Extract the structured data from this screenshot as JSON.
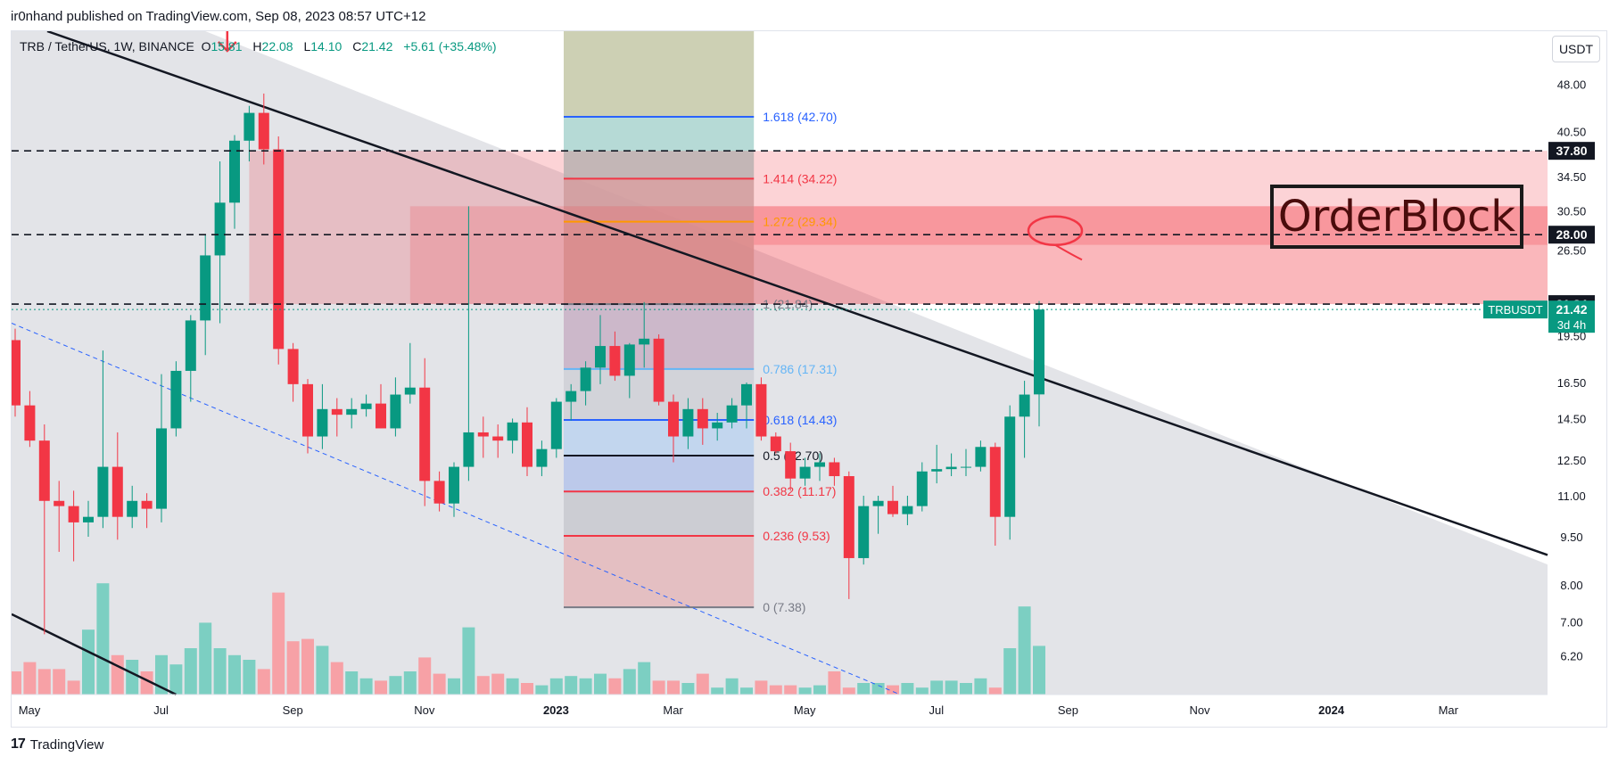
{
  "publisher_line": "ir0nhand published on TradingView.com, Sep 08, 2023 08:57 UTC+12",
  "footer_brand": "TradingView",
  "currency": "USDT",
  "legend": {
    "pair": "TRB / TetherUS, 1W, BINANCE",
    "o_label": "O",
    "o": "15.81",
    "h_label": "H",
    "h": "22.08",
    "l_label": "L",
    "l": "14.10",
    "c_label": "C",
    "c": "21.42",
    "change": "+5.61 (+35.48%)"
  },
  "annotation_text": "OrderBlock",
  "colors": {
    "up": "#089981",
    "down": "#f23645",
    "up_vol": "#7ccfc2",
    "down_vol": "#f7a1a6"
  },
  "chart_data": {
    "type": "candlestick",
    "symbol": "TRBUSDT",
    "last_price": "21.42",
    "countdown": "3d 4h",
    "y_scale": "log",
    "ylim": [
      5.4,
      58
    ],
    "price_ticks": [
      "48.00",
      "40.50",
      "34.50",
      "30.50",
      "26.50",
      "19.50",
      "16.50",
      "14.50",
      "12.50",
      "11.00",
      "9.50",
      "8.00",
      "7.00",
      "6.20"
    ],
    "time_ticks": [
      {
        "label": "May",
        "t": 0
      },
      {
        "label": "Jul",
        "t": 9
      },
      {
        "label": "Sep",
        "t": 18
      },
      {
        "label": "Nov",
        "t": 27
      },
      {
        "label": "2023",
        "t": 36,
        "bold": true
      },
      {
        "label": "Mar",
        "t": 44
      },
      {
        "label": "May",
        "t": 53
      },
      {
        "label": "Jul",
        "t": 62
      },
      {
        "label": "Sep",
        "t": 71
      },
      {
        "label": "Nov",
        "t": 80
      },
      {
        "label": "2024",
        "t": 89,
        "bold": true
      },
      {
        "label": "Mar",
        "t": 97
      }
    ],
    "horizontal_levels": [
      {
        "price": 37.8,
        "label": "37.80"
      },
      {
        "price": 28.0,
        "label": "28.00"
      },
      {
        "price": 21.84,
        "label": "21.84"
      }
    ],
    "fibonacci": [
      {
        "ratio": "1.618",
        "price": 42.7,
        "text": "1.618 (42.70)",
        "color": "#2962ff"
      },
      {
        "ratio": "1.414",
        "price": 34.22,
        "text": "1.414 (34.22)",
        "color": "#f23645"
      },
      {
        "ratio": "1.272",
        "price": 29.34,
        "text": "1.272 (29.34)",
        "color": "#ff9800"
      },
      {
        "ratio": "1",
        "price": 21.84,
        "text": "1 (21.84)",
        "color": "#787b86"
      },
      {
        "ratio": "0.786",
        "price": 17.31,
        "text": "0.786 (17.31)",
        "color": "#64b5f6"
      },
      {
        "ratio": "0.618",
        "price": 14.43,
        "text": "0.618 (14.43)",
        "color": "#2962ff"
      },
      {
        "ratio": "0.5",
        "price": 12.7,
        "text": "0.5 (12.70)",
        "color": "#131722"
      },
      {
        "ratio": "0.382",
        "price": 11.17,
        "text": "0.382 (11.17)",
        "color": "#f23645"
      },
      {
        "ratio": "0.236",
        "price": 9.53,
        "text": "0.236 (9.53)",
        "color": "#f23645"
      },
      {
        "ratio": "0",
        "price": 7.38,
        "text": "0 (7.38)",
        "color": "#787b86"
      }
    ],
    "candles": [
      {
        "o": 19.2,
        "h": 20.0,
        "l": 14.6,
        "c": 15.2
      },
      {
        "o": 15.2,
        "h": 16.0,
        "l": 13.1,
        "c": 13.4
      },
      {
        "o": 13.4,
        "h": 14.2,
        "l": 6.7,
        "c": 10.8
      },
      {
        "o": 10.8,
        "h": 11.6,
        "l": 9.0,
        "c": 10.6
      },
      {
        "o": 10.6,
        "h": 11.2,
        "l": 8.7,
        "c": 10.0
      },
      {
        "o": 10.0,
        "h": 10.8,
        "l": 9.5,
        "c": 10.2
      },
      {
        "o": 10.2,
        "h": 18.5,
        "l": 9.8,
        "c": 12.2
      },
      {
        "o": 12.2,
        "h": 13.8,
        "l": 9.4,
        "c": 10.2
      },
      {
        "o": 10.2,
        "h": 11.4,
        "l": 9.8,
        "c": 10.8
      },
      {
        "o": 10.8,
        "h": 11.1,
        "l": 9.8,
        "c": 10.5
      },
      {
        "o": 10.5,
        "h": 17.0,
        "l": 10.0,
        "c": 14.0
      },
      {
        "o": 14.0,
        "h": 17.8,
        "l": 13.6,
        "c": 17.2
      },
      {
        "o": 17.2,
        "h": 21.0,
        "l": 15.4,
        "c": 20.6
      },
      {
        "o": 20.6,
        "h": 28.0,
        "l": 18.2,
        "c": 26.0
      },
      {
        "o": 26.0,
        "h": 36.4,
        "l": 20.4,
        "c": 31.4
      },
      {
        "o": 31.4,
        "h": 40.0,
        "l": 28.6,
        "c": 39.2
      },
      {
        "o": 39.2,
        "h": 44.4,
        "l": 36.4,
        "c": 43.3
      },
      {
        "o": 43.3,
        "h": 46.4,
        "l": 36.0,
        "c": 38.0
      },
      {
        "o": 38.0,
        "h": 39.8,
        "l": 17.6,
        "c": 18.6
      },
      {
        "o": 18.6,
        "h": 19.0,
        "l": 15.4,
        "c": 16.4
      },
      {
        "o": 16.4,
        "h": 16.7,
        "l": 12.8,
        "c": 13.6
      },
      {
        "o": 13.6,
        "h": 16.4,
        "l": 13.0,
        "c": 15.0
      },
      {
        "o": 15.0,
        "h": 15.6,
        "l": 13.6,
        "c": 14.7
      },
      {
        "o": 14.7,
        "h": 15.6,
        "l": 14.0,
        "c": 15.0
      },
      {
        "o": 15.0,
        "h": 15.8,
        "l": 14.6,
        "c": 15.3
      },
      {
        "o": 15.3,
        "h": 16.4,
        "l": 14.0,
        "c": 14.0
      },
      {
        "o": 14.0,
        "h": 16.8,
        "l": 13.6,
        "c": 15.8
      },
      {
        "o": 15.8,
        "h": 19.0,
        "l": 15.3,
        "c": 16.2
      },
      {
        "o": 16.2,
        "h": 18.0,
        "l": 10.6,
        "c": 11.6
      },
      {
        "o": 11.6,
        "h": 12.0,
        "l": 10.4,
        "c": 10.7
      },
      {
        "o": 10.7,
        "h": 12.4,
        "l": 10.2,
        "c": 12.2
      },
      {
        "o": 12.2,
        "h": 31.0,
        "l": 11.6,
        "c": 13.8
      },
      {
        "o": 13.8,
        "h": 14.6,
        "l": 12.6,
        "c": 13.6
      },
      {
        "o": 13.6,
        "h": 14.2,
        "l": 12.6,
        "c": 13.4
      },
      {
        "o": 13.4,
        "h": 14.5,
        "l": 12.8,
        "c": 14.3
      },
      {
        "o": 14.3,
        "h": 15.1,
        "l": 11.8,
        "c": 12.2
      },
      {
        "o": 12.2,
        "h": 13.4,
        "l": 11.8,
        "c": 13.0
      },
      {
        "o": 13.0,
        "h": 15.6,
        "l": 12.6,
        "c": 15.4
      },
      {
        "o": 15.4,
        "h": 16.4,
        "l": 14.4,
        "c": 16.0
      },
      {
        "o": 16.0,
        "h": 17.8,
        "l": 15.2,
        "c": 17.4
      },
      {
        "o": 17.4,
        "h": 21.0,
        "l": 16.4,
        "c": 18.8
      },
      {
        "o": 18.8,
        "h": 19.8,
        "l": 16.6,
        "c": 16.9
      },
      {
        "o": 16.9,
        "h": 19.0,
        "l": 15.6,
        "c": 18.9
      },
      {
        "o": 18.9,
        "h": 22.0,
        "l": 17.4,
        "c": 19.3
      },
      {
        "o": 19.3,
        "h": 19.6,
        "l": 15.2,
        "c": 15.4
      },
      {
        "o": 15.4,
        "h": 15.8,
        "l": 12.4,
        "c": 13.6
      },
      {
        "o": 13.6,
        "h": 15.6,
        "l": 13.0,
        "c": 15.0
      },
      {
        "o": 15.0,
        "h": 15.6,
        "l": 13.2,
        "c": 14.0
      },
      {
        "o": 14.0,
        "h": 14.8,
        "l": 13.4,
        "c": 14.3
      },
      {
        "o": 14.3,
        "h": 15.6,
        "l": 14.0,
        "c": 15.2
      },
      {
        "o": 15.2,
        "h": 16.5,
        "l": 14.0,
        "c": 16.4
      },
      {
        "o": 16.4,
        "h": 16.8,
        "l": 13.4,
        "c": 13.6
      },
      {
        "o": 13.6,
        "h": 13.8,
        "l": 12.8,
        "c": 12.9
      },
      {
        "o": 12.9,
        "h": 13.3,
        "l": 11.2,
        "c": 11.7
      },
      {
        "o": 11.7,
        "h": 12.6,
        "l": 11.4,
        "c": 12.2
      },
      {
        "o": 12.2,
        "h": 12.8,
        "l": 11.6,
        "c": 12.4
      },
      {
        "o": 12.4,
        "h": 12.6,
        "l": 11.4,
        "c": 11.8
      },
      {
        "o": 11.8,
        "h": 12.0,
        "l": 7.6,
        "c": 8.8
      },
      {
        "o": 8.8,
        "h": 11.0,
        "l": 8.6,
        "c": 10.6
      },
      {
        "o": 10.6,
        "h": 11.0,
        "l": 9.6,
        "c": 10.8
      },
      {
        "o": 10.8,
        "h": 11.4,
        "l": 10.2,
        "c": 10.3
      },
      {
        "o": 10.3,
        "h": 11.0,
        "l": 9.9,
        "c": 10.6
      },
      {
        "o": 10.6,
        "h": 12.4,
        "l": 10.4,
        "c": 12.0
      },
      {
        "o": 12.0,
        "h": 13.2,
        "l": 11.5,
        "c": 12.1
      },
      {
        "o": 12.1,
        "h": 12.8,
        "l": 11.8,
        "c": 12.2
      },
      {
        "o": 12.2,
        "h": 13.0,
        "l": 11.8,
        "c": 12.2
      },
      {
        "o": 12.2,
        "h": 13.4,
        "l": 12.0,
        "c": 13.1
      },
      {
        "o": 13.1,
        "h": 13.3,
        "l": 9.2,
        "c": 10.2
      },
      {
        "o": 10.2,
        "h": 15.2,
        "l": 9.4,
        "c": 14.6
      },
      {
        "o": 14.6,
        "h": 16.6,
        "l": 12.6,
        "c": 15.8
      },
      {
        "o": 15.81,
        "h": 22.08,
        "l": 14.1,
        "c": 21.42
      }
    ],
    "volume": [
      0.1,
      0.14,
      0.11,
      0.11,
      0.06,
      0.28,
      0.48,
      0.17,
      0.15,
      0.1,
      0.17,
      0.13,
      0.2,
      0.31,
      0.2,
      0.17,
      0.15,
      0.11,
      0.44,
      0.23,
      0.24,
      0.21,
      0.14,
      0.1,
      0.07,
      0.06,
      0.08,
      0.1,
      0.16,
      0.09,
      0.07,
      0.29,
      0.08,
      0.09,
      0.07,
      0.05,
      0.04,
      0.07,
      0.08,
      0.07,
      0.09,
      0.07,
      0.11,
      0.14,
      0.06,
      0.06,
      0.05,
      0.09,
      0.03,
      0.07,
      0.03,
      0.06,
      0.04,
      0.04,
      0.03,
      0.04,
      0.1,
      0.03,
      0.05,
      0.05,
      0.04,
      0.05,
      0.03,
      0.06,
      0.06,
      0.05,
      0.07,
      0.03,
      0.2,
      0.38,
      0.21
    ]
  }
}
